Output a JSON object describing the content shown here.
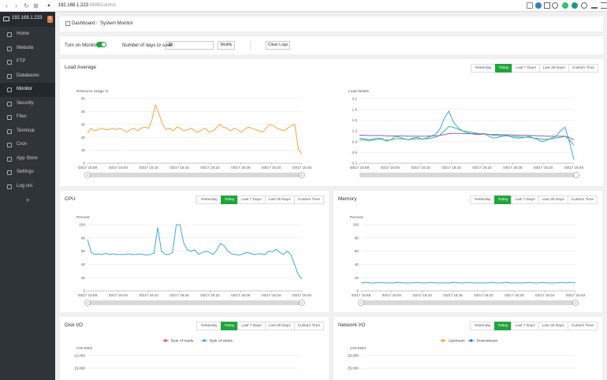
{
  "browser": {
    "url_host": "192.168.1.223",
    "url_rest": ":8888/control"
  },
  "sidebar": {
    "server": "192.168.1.223",
    "badge": "0",
    "items": [
      {
        "label": "Home",
        "icon": "home-icon"
      },
      {
        "label": "Website",
        "icon": "globe-icon"
      },
      {
        "label": "FTP",
        "icon": "ftp-icon"
      },
      {
        "label": "Databases",
        "icon": "database-icon"
      },
      {
        "label": "Monitor",
        "icon": "monitor-icon"
      },
      {
        "label": "Security",
        "icon": "shield-icon"
      },
      {
        "label": "Files",
        "icon": "folder-icon"
      },
      {
        "label": "Terminal",
        "icon": "terminal-icon"
      },
      {
        "label": "Cron",
        "icon": "clock-icon"
      },
      {
        "label": "App Store",
        "icon": "store-icon"
      },
      {
        "label": "Settings",
        "icon": "gear-icon"
      },
      {
        "label": "Log out",
        "icon": "logout-icon"
      }
    ],
    "plus": "+"
  },
  "breadcrumb": {
    "home": "Dashboard",
    "sep": "/",
    "current": "System Monitor"
  },
  "controls": {
    "monitor_label": "Turn on Monitory",
    "days_label": "Number of days to save :",
    "days_value": "30",
    "modify": "Modify",
    "clean": "Clean Logs"
  },
  "tabs": [
    "Yesterday",
    "Today",
    "Last 7 Days",
    "Last 30 Days",
    "Custom Time"
  ],
  "colors": {
    "accent": "#20a53a",
    "orange": "#f3a33b",
    "blue": "#3fa9dc",
    "green": "#2ec26e",
    "purple": "#9b59d6"
  },
  "x_ticks": [
    "03/17 15:58",
    "03/17 16:04",
    "03/17 16:10",
    "03/17 16:16",
    "03/17 16:22",
    "03/17 16:28",
    "03/17 16:34",
    "03/17 16:40"
  ],
  "panels": {
    "load": "Load Average",
    "cpu": "CPU",
    "memory": "Memory",
    "disk": "Disk I/O",
    "network": "Network I/O"
  },
  "chart_data": [
    {
      "type": "line",
      "panel": "Load Average",
      "ylabel": "Resource usage %",
      "ylim": [
        0,
        50
      ],
      "yticks": [
        "0",
        "10",
        "20",
        "30",
        "40",
        "50"
      ],
      "series": [
        {
          "color": "#f3a33b",
          "values": [
            23,
            27,
            25,
            26,
            27,
            26,
            26,
            27,
            26,
            27,
            26,
            24,
            26,
            27,
            25,
            27,
            28,
            27,
            33,
            45,
            38,
            30,
            26,
            27,
            25,
            28,
            27,
            25,
            26,
            27,
            25,
            24,
            26,
            27,
            24,
            25,
            27,
            30,
            28,
            27,
            25,
            27,
            26,
            24,
            26,
            28,
            27,
            26,
            25,
            24,
            27,
            30,
            29,
            27,
            26,
            25,
            27,
            29,
            30,
            11,
            7
          ]
        }
      ]
    },
    {
      "type": "line",
      "panel": "Load Average",
      "ylabel": "Load details",
      "ylim": [
        0.3,
        2.1
      ],
      "yticks": [
        "0.3",
        "0.6",
        "0.9",
        "1.2",
        "1.5",
        "1.8",
        "2.1"
      ],
      "series": [
        {
          "color": "#3fa9dc",
          "values": [
            1.0,
            0.98,
            0.95,
            0.97,
            1.0,
            0.99,
            0.92,
            0.95,
            1.05,
            1.02,
            0.98,
            0.95,
            1.0,
            1.02,
            0.97,
            1.0,
            1.05,
            1.1,
            1.25,
            1.55,
            1.75,
            1.45,
            1.3,
            1.2,
            1.15,
            1.12,
            1.1,
            1.1,
            1.12,
            1.05,
            1.0,
            1.02,
            1.05,
            1.08,
            1.03,
            1.0,
            1.0,
            1.02,
            1.05,
            1.0,
            0.95,
            0.9,
            0.95,
            1.0,
            1.05,
            1.2,
            1.3,
            0.9,
            0.4
          ]
        },
        {
          "color": "#2ec26e",
          "values": [
            0.95,
            0.95,
            0.93,
            0.94,
            0.96,
            0.96,
            0.94,
            0.95,
            0.98,
            0.98,
            0.97,
            0.96,
            0.97,
            0.98,
            0.97,
            0.98,
            1.0,
            1.02,
            1.08,
            1.2,
            1.32,
            1.3,
            1.25,
            1.2,
            1.18,
            1.16,
            1.14,
            1.12,
            1.12,
            1.1,
            1.08,
            1.07,
            1.06,
            1.06,
            1.05,
            1.04,
            1.03,
            1.03,
            1.02,
            1.0,
            0.99,
            0.97,
            0.97,
            0.98,
            1.0,
            1.02,
            1.05,
            0.95,
            0.8
          ]
        },
        {
          "color": "#9b59d6",
          "values": [
            1.08,
            1.08,
            1.07,
            1.07,
            1.07,
            1.07,
            1.06,
            1.06,
            1.06,
            1.06,
            1.06,
            1.05,
            1.05,
            1.05,
            1.05,
            1.05,
            1.06,
            1.06,
            1.07,
            1.1,
            1.12,
            1.13,
            1.13,
            1.13,
            1.12,
            1.12,
            1.12,
            1.11,
            1.11,
            1.1,
            1.1,
            1.1,
            1.09,
            1.09,
            1.09,
            1.08,
            1.08,
            1.08,
            1.07,
            1.07,
            1.06,
            1.06,
            1.05,
            1.05,
            1.05,
            1.05,
            1.05,
            1.02,
            0.95
          ]
        }
      ]
    },
    {
      "type": "line",
      "panel": "CPU",
      "ylabel": "Percent",
      "ylim": [
        0,
        100
      ],
      "yticks": [
        "0",
        "20",
        "40",
        "60",
        "80",
        "100"
      ],
      "series": [
        {
          "color": "#3fa9dc",
          "values": [
            78,
            58,
            55,
            56,
            55,
            57,
            55,
            56,
            55,
            55,
            55,
            56,
            55,
            55,
            56,
            55,
            54,
            55,
            57,
            96,
            60,
            55,
            55,
            58,
            100,
            100,
            73,
            62,
            60,
            62,
            55,
            58,
            60,
            58,
            55,
            62,
            72,
            68,
            60,
            56,
            55,
            54,
            56,
            58,
            57,
            55,
            56,
            56,
            55,
            60,
            59,
            63,
            58,
            55,
            60,
            55,
            40,
            25,
            18
          ]
        }
      ]
    },
    {
      "type": "line",
      "panel": "Memory",
      "ylabel": "Percent",
      "ylim": [
        0,
        100
      ],
      "yticks": [
        "0",
        "20",
        "40",
        "60",
        "80",
        "100"
      ],
      "series": [
        {
          "color": "#3fa9dc",
          "values": [
            12,
            13,
            12,
            12,
            13,
            12,
            12,
            12,
            13,
            12,
            12,
            12,
            13,
            12,
            12,
            13,
            12,
            12,
            12,
            12,
            13,
            12,
            12,
            13,
            12,
            12,
            12,
            12,
            13,
            12,
            12,
            13,
            12,
            12,
            12,
            12,
            13,
            12,
            12,
            13,
            12,
            12,
            12,
            13,
            12,
            13,
            12
          ]
        }
      ]
    },
    {
      "type": "line",
      "panel": "Disk I/O",
      "ylabel": "Unit:KB/s",
      "yticks": [
        "15,000",
        "12,000"
      ],
      "series": [
        {
          "name": "Byte of reads",
          "color": "#e45a6e",
          "values": []
        },
        {
          "name": "Byte of writes",
          "color": "#3fa9dc",
          "values": []
        }
      ]
    },
    {
      "type": "line",
      "panel": "Network I/O",
      "ylabel": "Unit:KB/s",
      "yticks": [
        "25,000",
        "20,000"
      ],
      "series": [
        {
          "name": "Upstream",
          "color": "#f3a33b",
          "values": []
        },
        {
          "name": "Downstream",
          "color": "#2e7ed6",
          "values": []
        }
      ]
    }
  ]
}
